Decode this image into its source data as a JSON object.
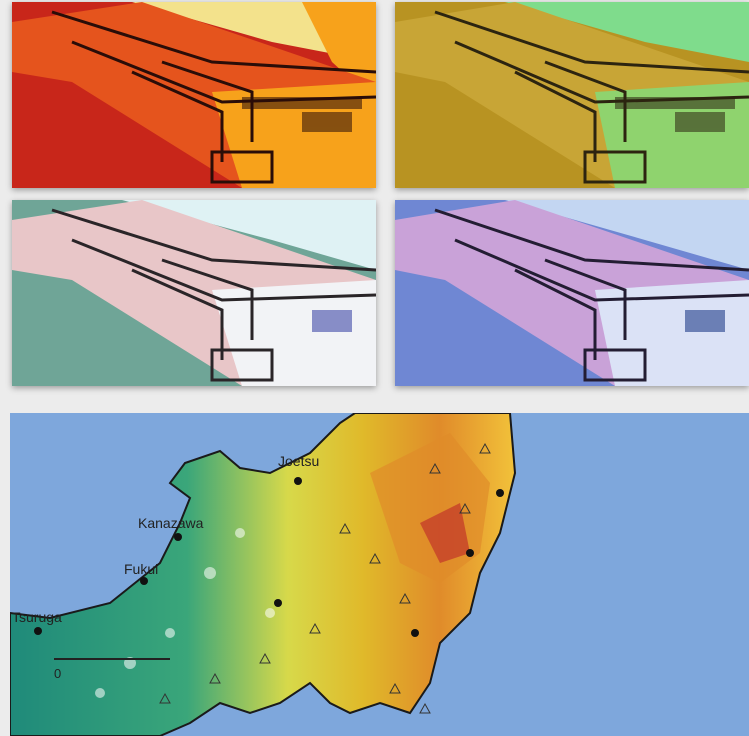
{
  "photo_panels": [
    {
      "name": "red-orange-tint",
      "colors": {
        "bg": "#c8261a",
        "mid": "#e5541d",
        "light": "#f7a21b",
        "sky": "#f3e28c",
        "dark": "#2a0d08"
      }
    },
    {
      "name": "yellow-green-tint",
      "colors": {
        "bg": "#b89322",
        "mid": "#c8a536",
        "light": "#8fd36e",
        "sky": "#7fdc8c",
        "dark": "#2c2410"
      }
    },
    {
      "name": "pink-teal-tint",
      "colors": {
        "bg": "#6fa597",
        "mid": "#e8c6c8",
        "light": "#f2f3f6",
        "sky": "#dff2f4",
        "dark": "#2a2528"
      }
    },
    {
      "name": "purple-blue-tint",
      "colors": {
        "bg": "#6f87d3",
        "mid": "#c9a2d8",
        "light": "#dbe2f6",
        "sky": "#c3d6f2",
        "dark": "#231d33"
      }
    }
  ],
  "map": {
    "city_labels": {
      "joetsu": "Joetsu",
      "kanazawa": "Kanazawa",
      "fukui": "Fukui",
      "tsuruga": "Tsuruga"
    },
    "scale_zero": "0",
    "colors": {
      "sea": "#7ea7dc",
      "lowland": "#1f8a7a",
      "mid": "#d7d94a",
      "high": "#e08b2a",
      "peak": "#c2352a"
    }
  }
}
